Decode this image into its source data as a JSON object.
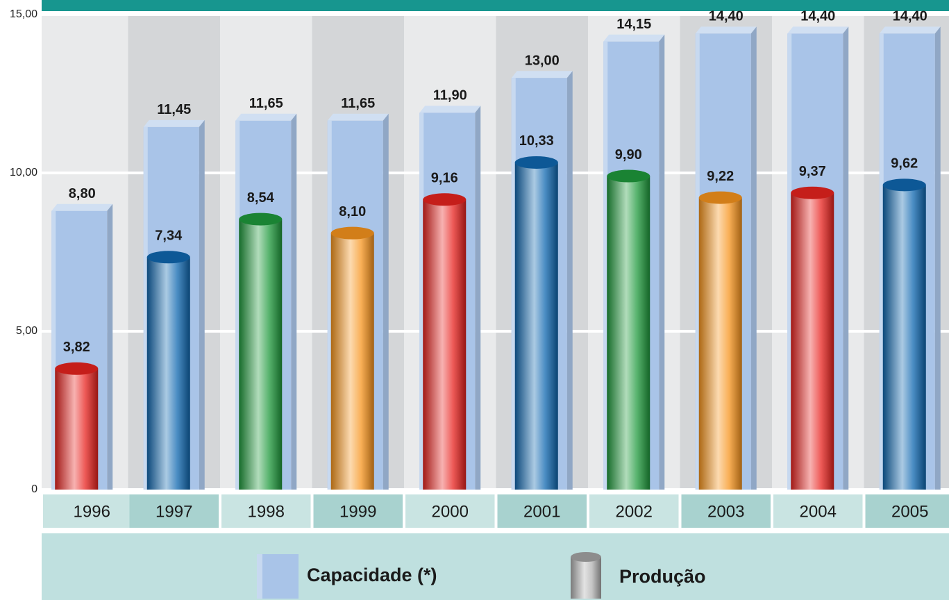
{
  "chart_data": {
    "type": "bar",
    "categories": [
      "1996",
      "1997",
      "1998",
      "1999",
      "2000",
      "2001",
      "2002",
      "2003",
      "2004",
      "2005"
    ],
    "series": [
      {
        "name": "Capacidade (*)",
        "color": "#a9c4e8",
        "values": [
          8.8,
          11.45,
          11.65,
          11.65,
          11.9,
          13.0,
          14.15,
          14.4,
          14.4,
          14.4
        ],
        "value_labels": [
          "8,80",
          "11,45",
          "11,65",
          "11,65",
          "11,90",
          "13,00",
          "14,15",
          "14,40",
          "14,40",
          "14,40"
        ]
      },
      {
        "name": "Produção",
        "color": "#b0b0b0",
        "colors": [
          "#e8231f",
          "#0f67b0",
          "#1f9a3c",
          "#f7941d",
          "#e8231f",
          "#0f67b0",
          "#1f9a3c",
          "#f7941d",
          "#e8231f",
          "#0f67b0"
        ],
        "values": [
          3.82,
          7.34,
          8.54,
          8.1,
          9.16,
          10.33,
          9.9,
          9.22,
          9.37,
          9.62
        ],
        "value_labels": [
          "3,82",
          "7,34",
          "8,54",
          "8,10",
          "9,16",
          "10,33",
          "9,90",
          "9,22",
          "9,37",
          "9,62"
        ]
      }
    ],
    "ylim": [
      0,
      15
    ],
    "yticks": [
      0,
      {
        "value": 5,
        "label": "5,00"
      },
      {
        "value": 10,
        "label": "10,00"
      },
      {
        "value": 15,
        "label": "15,00"
      }
    ],
    "grid": true
  }
}
